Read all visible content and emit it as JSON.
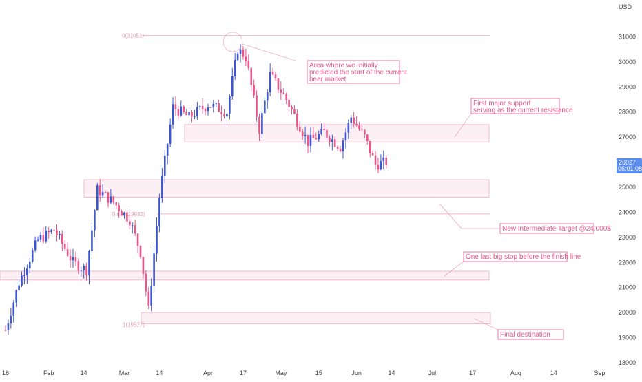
{
  "chart_data": {
    "type": "candlestick",
    "currency_label": "USD",
    "y_range": [
      18000,
      32000
    ],
    "y_ticks": [
      31000,
      30000,
      29000,
      28000,
      27000,
      26000,
      25000,
      24000,
      23000,
      22000,
      21000,
      20000,
      19000,
      18000
    ],
    "x_ticks": [
      "16",
      "Feb",
      "14",
      "Mar",
      "14",
      "Apr",
      "17",
      "May",
      "15",
      "Jun",
      "14",
      "Jul",
      "17",
      "Aug",
      "14",
      "Sep"
    ],
    "x_tick_days": [
      0,
      16,
      29,
      44,
      57,
      75,
      88,
      102,
      116,
      130,
      143,
      158,
      173,
      189,
      203,
      220
    ],
    "last_price": "26027",
    "countdown": "06:01:08",
    "colors": {
      "up": "#3d55cf",
      "down": "#e8568a",
      "annotation": "#e8568a",
      "zone_fill": "#fdf0f4",
      "zone_stroke": "#f3b8cc",
      "price_badge": "#5b8def"
    },
    "key_points": [
      {
        "day": 0,
        "price": 19300
      },
      {
        "day": 5,
        "price": 21200
      },
      {
        "day": 12,
        "price": 22900
      },
      {
        "day": 18,
        "price": 23300
      },
      {
        "day": 25,
        "price": 22000
      },
      {
        "day": 30,
        "price": 21700
      },
      {
        "day": 34,
        "price": 24900
      },
      {
        "day": 40,
        "price": 24400
      },
      {
        "day": 46,
        "price": 23700
      },
      {
        "day": 50,
        "price": 22400
      },
      {
        "day": 53,
        "price": 20100
      },
      {
        "day": 57,
        "price": 24600
      },
      {
        "day": 62,
        "price": 28200
      },
      {
        "day": 68,
        "price": 27800
      },
      {
        "day": 75,
        "price": 28300
      },
      {
        "day": 82,
        "price": 28000
      },
      {
        "day": 86,
        "price": 30500
      },
      {
        "day": 89,
        "price": 30200
      },
      {
        "day": 94,
        "price": 27300
      },
      {
        "day": 98,
        "price": 29500
      },
      {
        "day": 104,
        "price": 28500
      },
      {
        "day": 112,
        "price": 26800
      },
      {
        "day": 118,
        "price": 27200
      },
      {
        "day": 124,
        "price": 26600
      },
      {
        "day": 128,
        "price": 27800
      },
      {
        "day": 133,
        "price": 27000
      },
      {
        "day": 137,
        "price": 25900
      },
      {
        "day": 141,
        "price": 26000
      }
    ],
    "zones": [
      {
        "label": "fib-top-line",
        "y_low": 31051,
        "y_high": 31051
      },
      {
        "label": "first-support-zone",
        "y_low": 26800,
        "y_high": 27500
      },
      {
        "label": "intermediate-zone",
        "y_low": 24600,
        "y_high": 25300
      },
      {
        "label": "last-stop-zone",
        "y_low": 21300,
        "y_high": 21650
      },
      {
        "label": "final-zone",
        "y_low": 19550,
        "y_high": 20000
      }
    ],
    "fib_labels": [
      {
        "text": "0(31051)",
        "price": 31051
      },
      {
        "text": "0.618(23932)",
        "price": 23932
      },
      {
        "text": "1(19527)",
        "price": 19527
      }
    ],
    "annotations": [
      {
        "lines": [
          "Area where we initially",
          "predicted the start of the current",
          "bear market"
        ]
      },
      {
        "lines": [
          "First major support",
          "serving as the current resistance"
        ]
      },
      {
        "lines": [
          "New Intermediate Target @24.000$"
        ]
      },
      {
        "lines": [
          "One last big stop before the finish line"
        ]
      },
      {
        "lines": [
          "Final destination"
        ]
      }
    ]
  }
}
